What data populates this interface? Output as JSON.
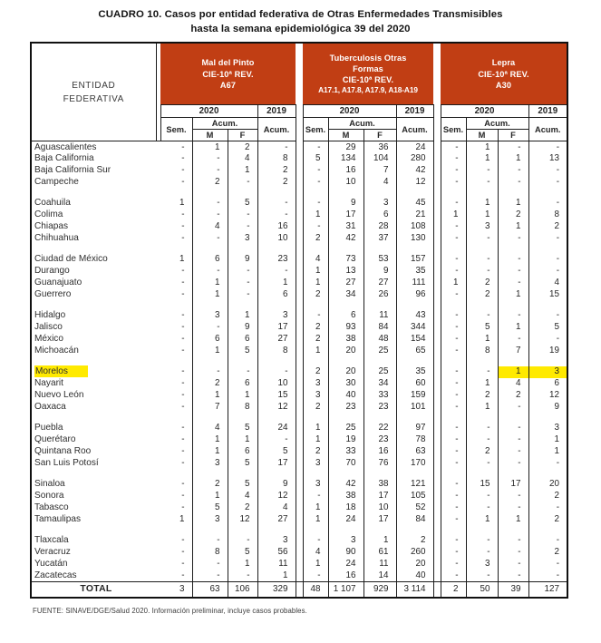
{
  "title": {
    "line1": "CUADRO 10.  Casos por entidad federativa de Otras Enfermedades Transmisibles",
    "line2": "hasta la semana epidemiológica 39 del 2020"
  },
  "colors": {
    "header_bg": "#C13E14",
    "highlight": "#FFEA00"
  },
  "header": {
    "entity_line1": "ENTIDAD",
    "entity_line2": "FEDERATIVA",
    "groups": [
      {
        "title_lines": [
          "Mal del Pinto",
          "CIE-10ª REV.",
          "A67"
        ]
      },
      {
        "title_lines": [
          "Tuberculosis Otras",
          "Formas",
          "CIE-10ª REV.",
          "A17.1, A17.8, A17.9, A18-A19"
        ]
      },
      {
        "title_lines": [
          "Lepra",
          "CIE-10ª REV.",
          "A30"
        ]
      }
    ],
    "year_2020": "2020",
    "year_2019": "2019",
    "sem": "Sem.",
    "acum": "Acum.",
    "m": "M",
    "f": "F"
  },
  "table": {
    "rows": [
      {
        "type": "state",
        "name": "Aguascalientes",
        "values": [
          "-",
          "1",
          "2",
          "-",
          "-",
          "29",
          "36",
          "24",
          "-",
          "1",
          "-",
          "-"
        ]
      },
      {
        "type": "state",
        "name": "Baja California",
        "values": [
          "-",
          "-",
          "4",
          "8",
          "5",
          "134",
          "104",
          "280",
          "-",
          "1",
          "1",
          "13"
        ]
      },
      {
        "type": "state",
        "name": "Baja California Sur",
        "values": [
          "-",
          "-",
          "1",
          "2",
          "-",
          "16",
          "7",
          "42",
          "-",
          "-",
          "-",
          "-"
        ]
      },
      {
        "type": "state",
        "name": "Campeche",
        "values": [
          "-",
          "2",
          "-",
          "2",
          "-",
          "10",
          "4",
          "12",
          "-",
          "-",
          "-",
          "-"
        ]
      },
      {
        "type": "gap"
      },
      {
        "type": "state",
        "name": "Coahuila",
        "values": [
          "1",
          "-",
          "5",
          "-",
          "-",
          "9",
          "3",
          "45",
          "-",
          "1",
          "1",
          "-"
        ]
      },
      {
        "type": "state",
        "name": "Colima",
        "values": [
          "-",
          "-",
          "-",
          "-",
          "1",
          "17",
          "6",
          "21",
          "1",
          "1",
          "2",
          "8"
        ]
      },
      {
        "type": "state",
        "name": "Chiapas",
        "values": [
          "-",
          "4",
          "-",
          "16",
          "-",
          "31",
          "28",
          "108",
          "-",
          "3",
          "1",
          "2"
        ]
      },
      {
        "type": "state",
        "name": "Chihuahua",
        "values": [
          "-",
          "-",
          "3",
          "10",
          "2",
          "42",
          "37",
          "130",
          "-",
          "-",
          "-",
          "-"
        ]
      },
      {
        "type": "gap"
      },
      {
        "type": "state",
        "name": "Ciudad de México",
        "values": [
          "1",
          "6",
          "9",
          "23",
          "4",
          "73",
          "53",
          "157",
          "-",
          "-",
          "-",
          "-"
        ]
      },
      {
        "type": "state",
        "name": "Durango",
        "values": [
          "-",
          "-",
          "-",
          "-",
          "1",
          "13",
          "9",
          "35",
          "-",
          "-",
          "-",
          "-"
        ]
      },
      {
        "type": "state",
        "name": "Guanajuato",
        "values": [
          "-",
          "1",
          "-",
          "1",
          "1",
          "27",
          "27",
          "111",
          "1",
          "2",
          "-",
          "4"
        ]
      },
      {
        "type": "state",
        "name": "Guerrero",
        "values": [
          "-",
          "1",
          "-",
          "6",
          "2",
          "34",
          "26",
          "96",
          "-",
          "2",
          "1",
          "15"
        ]
      },
      {
        "type": "gap"
      },
      {
        "type": "state",
        "name": "Hidalgo",
        "values": [
          "-",
          "3",
          "1",
          "3",
          "-",
          "6",
          "11",
          "43",
          "-",
          "-",
          "-",
          "-"
        ]
      },
      {
        "type": "state",
        "name": "Jalisco",
        "values": [
          "-",
          "-",
          "9",
          "17",
          "2",
          "93",
          "84",
          "344",
          "-",
          "5",
          "1",
          "5"
        ]
      },
      {
        "type": "state",
        "name": "México",
        "values": [
          "-",
          "6",
          "6",
          "27",
          "2",
          "38",
          "48",
          "154",
          "-",
          "1",
          "-",
          "-"
        ]
      },
      {
        "type": "state",
        "name": "Michoacán",
        "values": [
          "-",
          "1",
          "5",
          "8",
          "1",
          "20",
          "25",
          "65",
          "-",
          "8",
          "7",
          "19"
        ]
      },
      {
        "type": "gap"
      },
      {
        "type": "state",
        "name": "Morelos",
        "highlight_name": true,
        "highlight_cols": [
          10,
          11
        ],
        "values": [
          "-",
          "-",
          "-",
          "-",
          "2",
          "20",
          "25",
          "35",
          "-",
          "-",
          "1",
          "3"
        ]
      },
      {
        "type": "state",
        "name": "Nayarit",
        "values": [
          "-",
          "2",
          "6",
          "10",
          "3",
          "30",
          "34",
          "60",
          "-",
          "1",
          "4",
          "6"
        ]
      },
      {
        "type": "state",
        "name": "Nuevo León",
        "values": [
          "-",
          "1",
          "1",
          "15",
          "3",
          "40",
          "33",
          "159",
          "-",
          "2",
          "2",
          "12"
        ]
      },
      {
        "type": "state",
        "name": "Oaxaca",
        "values": [
          "-",
          "7",
          "8",
          "12",
          "2",
          "23",
          "23",
          "101",
          "-",
          "1",
          "-",
          "9"
        ]
      },
      {
        "type": "gap"
      },
      {
        "type": "state",
        "name": "Puebla",
        "values": [
          "-",
          "4",
          "5",
          "24",
          "1",
          "25",
          "22",
          "97",
          "-",
          "-",
          "-",
          "3"
        ]
      },
      {
        "type": "state",
        "name": "Querétaro",
        "values": [
          "-",
          "1",
          "1",
          "-",
          "1",
          "19",
          "23",
          "78",
          "-",
          "-",
          "-",
          "1"
        ]
      },
      {
        "type": "state",
        "name": "Quintana Roo",
        "values": [
          "-",
          "1",
          "6",
          "5",
          "2",
          "33",
          "16",
          "63",
          "-",
          "2",
          "-",
          "1"
        ]
      },
      {
        "type": "state",
        "name": "San Luis Potosí",
        "values": [
          "-",
          "3",
          "5",
          "17",
          "3",
          "70",
          "76",
          "170",
          "-",
          "-",
          "-",
          "-"
        ]
      },
      {
        "type": "gap"
      },
      {
        "type": "state",
        "name": "Sinaloa",
        "values": [
          "-",
          "2",
          "5",
          "9",
          "3",
          "42",
          "38",
          "121",
          "-",
          "15",
          "17",
          "20"
        ]
      },
      {
        "type": "state",
        "name": "Sonora",
        "values": [
          "-",
          "1",
          "4",
          "12",
          "-",
          "38",
          "17",
          "105",
          "-",
          "-",
          "-",
          "2"
        ]
      },
      {
        "type": "state",
        "name": "Tabasco",
        "values": [
          "-",
          "5",
          "2",
          "4",
          "1",
          "18",
          "10",
          "52",
          "-",
          "-",
          "-",
          "-"
        ]
      },
      {
        "type": "state",
        "name": "Tamaulipas",
        "values": [
          "1",
          "3",
          "12",
          "27",
          "1",
          "24",
          "17",
          "84",
          "-",
          "1",
          "1",
          "2"
        ]
      },
      {
        "type": "gap"
      },
      {
        "type": "state",
        "name": "Tlaxcala",
        "values": [
          "-",
          "-",
          "-",
          "3",
          "-",
          "3",
          "1",
          "2",
          "-",
          "-",
          "-",
          "-"
        ]
      },
      {
        "type": "state",
        "name": "Veracruz",
        "values": [
          "-",
          "8",
          "5",
          "56",
          "4",
          "90",
          "61",
          "260",
          "-",
          "-",
          "-",
          "2"
        ]
      },
      {
        "type": "state",
        "name": "Yucatán",
        "values": [
          "-",
          "-",
          "1",
          "11",
          "1",
          "24",
          "11",
          "20",
          "-",
          "3",
          "-",
          "-"
        ]
      },
      {
        "type": "state",
        "name": "Zacatecas",
        "values": [
          "-",
          "-",
          "-",
          "1",
          "-",
          "16",
          "14",
          "40",
          "-",
          "-",
          "-",
          "-"
        ]
      }
    ],
    "total": {
      "label": "TOTAL",
      "values": [
        "3",
        "63",
        "106",
        "329",
        "48",
        "1 107",
        "929",
        "3 114",
        "2",
        "50",
        "39",
        "127"
      ]
    }
  },
  "footer": "FUENTE: SINAVE/DGE/Salud 2020. Información preliminar, incluye casos probables."
}
